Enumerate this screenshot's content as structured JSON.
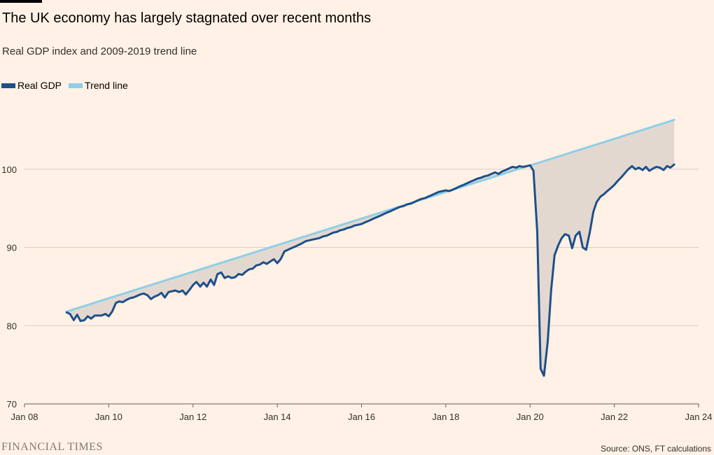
{
  "header": {
    "title": "The UK economy has largely stagnated over recent months",
    "subtitle": "Real GDP index and 2009-2019 trend line"
  },
  "footer": {
    "brand": "FINANCIAL TIMES",
    "source": "Source: ONS, FT calculations"
  },
  "chart_data": {
    "type": "line",
    "title": "The UK economy has largely stagnated over recent months",
    "subtitle": "Real GDP index and 2009-2019 trend line",
    "xlabel": "",
    "ylabel": "",
    "xlim": [
      2008.0,
      2024.0
    ],
    "ylim": [
      70,
      110
    ],
    "x_ticks": [
      {
        "value": 2008,
        "label": "Jan 08"
      },
      {
        "value": 2010,
        "label": "Jan 10"
      },
      {
        "value": 2012,
        "label": "Jan 12"
      },
      {
        "value": 2014,
        "label": "Jan 14"
      },
      {
        "value": 2016,
        "label": "Jan 16"
      },
      {
        "value": 2018,
        "label": "Jan 18"
      },
      {
        "value": 2020,
        "label": "Jan 20"
      },
      {
        "value": 2022,
        "label": "Jan 22"
      },
      {
        "value": 2024,
        "label": "Jan 24"
      }
    ],
    "y_ticks": [
      {
        "value": 70,
        "label": "70"
      },
      {
        "value": 80,
        "label": "80"
      },
      {
        "value": 90,
        "label": "90"
      },
      {
        "value": 100,
        "label": "100"
      }
    ],
    "grid": "horizontal",
    "legend_position": "top-left",
    "fill_between": "gap between series",
    "colors": {
      "background": "#fff1e5",
      "gdp": "#1e4f8a",
      "trend": "#8ecfe6",
      "fill": "#e3d8d0",
      "grid": "#d8cfc6"
    },
    "series": [
      {
        "name": "Real GDP",
        "color": "#1e4f8a",
        "points": [
          [
            2009.0,
            81.7
          ],
          [
            2009.08,
            81.5
          ],
          [
            2009.17,
            80.7
          ],
          [
            2009.25,
            81.4
          ],
          [
            2009.33,
            80.6
          ],
          [
            2009.42,
            80.7
          ],
          [
            2009.5,
            81.2
          ],
          [
            2009.58,
            80.9
          ],
          [
            2009.67,
            81.3
          ],
          [
            2009.75,
            81.3
          ],
          [
            2009.83,
            81.3
          ],
          [
            2009.92,
            81.5
          ],
          [
            2010.0,
            81.2
          ],
          [
            2010.08,
            81.8
          ],
          [
            2010.17,
            82.9
          ],
          [
            2010.25,
            83.1
          ],
          [
            2010.33,
            83.0
          ],
          [
            2010.42,
            83.3
          ],
          [
            2010.5,
            83.5
          ],
          [
            2010.58,
            83.6
          ],
          [
            2010.67,
            83.8
          ],
          [
            2010.75,
            84.0
          ],
          [
            2010.83,
            84.1
          ],
          [
            2010.92,
            83.9
          ],
          [
            2011.0,
            83.4
          ],
          [
            2011.08,
            83.7
          ],
          [
            2011.17,
            83.9
          ],
          [
            2011.25,
            84.2
          ],
          [
            2011.33,
            83.6
          ],
          [
            2011.42,
            84.3
          ],
          [
            2011.5,
            84.4
          ],
          [
            2011.58,
            84.5
          ],
          [
            2011.67,
            84.3
          ],
          [
            2011.75,
            84.5
          ],
          [
            2011.83,
            84.0
          ],
          [
            2011.92,
            84.6
          ],
          [
            2012.0,
            85.2
          ],
          [
            2012.08,
            85.6
          ],
          [
            2012.17,
            85.0
          ],
          [
            2012.25,
            85.5
          ],
          [
            2012.33,
            85.0
          ],
          [
            2012.42,
            85.9
          ],
          [
            2012.5,
            85.2
          ],
          [
            2012.58,
            86.6
          ],
          [
            2012.67,
            86.8
          ],
          [
            2012.75,
            86.1
          ],
          [
            2012.83,
            86.3
          ],
          [
            2012.92,
            86.1
          ],
          [
            2013.0,
            86.2
          ],
          [
            2013.08,
            86.6
          ],
          [
            2013.17,
            86.5
          ],
          [
            2013.25,
            86.9
          ],
          [
            2013.33,
            87.2
          ],
          [
            2013.42,
            87.3
          ],
          [
            2013.5,
            87.7
          ],
          [
            2013.58,
            87.8
          ],
          [
            2013.67,
            88.1
          ],
          [
            2013.75,
            87.9
          ],
          [
            2013.83,
            88.2
          ],
          [
            2013.92,
            88.5
          ],
          [
            2014.0,
            88.0
          ],
          [
            2014.08,
            88.5
          ],
          [
            2014.17,
            89.5
          ],
          [
            2014.25,
            89.7
          ],
          [
            2014.33,
            89.9
          ],
          [
            2014.42,
            90.1
          ],
          [
            2014.5,
            90.3
          ],
          [
            2014.58,
            90.5
          ],
          [
            2014.67,
            90.8
          ],
          [
            2014.75,
            90.9
          ],
          [
            2014.83,
            91.0
          ],
          [
            2014.92,
            91.1
          ],
          [
            2015.0,
            91.2
          ],
          [
            2015.08,
            91.4
          ],
          [
            2015.17,
            91.5
          ],
          [
            2015.25,
            91.7
          ],
          [
            2015.33,
            91.9
          ],
          [
            2015.42,
            92.0
          ],
          [
            2015.5,
            92.2
          ],
          [
            2015.58,
            92.3
          ],
          [
            2015.67,
            92.5
          ],
          [
            2015.75,
            92.6
          ],
          [
            2015.83,
            92.8
          ],
          [
            2015.92,
            92.9
          ],
          [
            2016.0,
            93.0
          ],
          [
            2016.08,
            93.2
          ],
          [
            2016.17,
            93.4
          ],
          [
            2016.25,
            93.6
          ],
          [
            2016.33,
            93.8
          ],
          [
            2016.42,
            94.0
          ],
          [
            2016.5,
            94.2
          ],
          [
            2016.58,
            94.4
          ],
          [
            2016.67,
            94.6
          ],
          [
            2016.75,
            94.8
          ],
          [
            2016.83,
            95.0
          ],
          [
            2016.92,
            95.2
          ],
          [
            2017.0,
            95.3
          ],
          [
            2017.08,
            95.5
          ],
          [
            2017.17,
            95.6
          ],
          [
            2017.25,
            95.8
          ],
          [
            2017.33,
            96.0
          ],
          [
            2017.42,
            96.2
          ],
          [
            2017.5,
            96.3
          ],
          [
            2017.58,
            96.5
          ],
          [
            2017.67,
            96.7
          ],
          [
            2017.75,
            96.9
          ],
          [
            2017.83,
            97.1
          ],
          [
            2017.92,
            97.2
          ],
          [
            2018.0,
            97.3
          ],
          [
            2018.08,
            97.2
          ],
          [
            2018.17,
            97.4
          ],
          [
            2018.25,
            97.6
          ],
          [
            2018.33,
            97.8
          ],
          [
            2018.42,
            98.0
          ],
          [
            2018.5,
            98.2
          ],
          [
            2018.58,
            98.4
          ],
          [
            2018.67,
            98.6
          ],
          [
            2018.75,
            98.8
          ],
          [
            2018.83,
            98.9
          ],
          [
            2018.92,
            99.1
          ],
          [
            2019.0,
            99.2
          ],
          [
            2019.08,
            99.4
          ],
          [
            2019.17,
            99.6
          ],
          [
            2019.25,
            99.4
          ],
          [
            2019.33,
            99.7
          ],
          [
            2019.42,
            99.9
          ],
          [
            2019.5,
            100.1
          ],
          [
            2019.58,
            100.3
          ],
          [
            2019.67,
            100.2
          ],
          [
            2019.75,
            100.4
          ],
          [
            2019.83,
            100.3
          ],
          [
            2019.92,
            100.4
          ],
          [
            2020.0,
            100.5
          ],
          [
            2020.08,
            99.8
          ],
          [
            2020.17,
            92.0
          ],
          [
            2020.25,
            74.5
          ],
          [
            2020.33,
            73.6
          ],
          [
            2020.42,
            78.0
          ],
          [
            2020.5,
            84.5
          ],
          [
            2020.58,
            89.0
          ],
          [
            2020.67,
            90.3
          ],
          [
            2020.75,
            91.2
          ],
          [
            2020.83,
            91.7
          ],
          [
            2020.92,
            91.5
          ],
          [
            2021.0,
            89.9
          ],
          [
            2021.08,
            91.5
          ],
          [
            2021.17,
            92.0
          ],
          [
            2021.25,
            90.0
          ],
          [
            2021.33,
            89.7
          ],
          [
            2021.42,
            92.0
          ],
          [
            2021.5,
            94.5
          ],
          [
            2021.58,
            95.8
          ],
          [
            2021.67,
            96.5
          ],
          [
            2021.75,
            96.8
          ],
          [
            2021.83,
            97.2
          ],
          [
            2021.92,
            97.6
          ],
          [
            2022.0,
            98.0
          ],
          [
            2022.08,
            98.5
          ],
          [
            2022.17,
            99.0
          ],
          [
            2022.25,
            99.5
          ],
          [
            2022.33,
            100.0
          ],
          [
            2022.42,
            100.4
          ],
          [
            2022.5,
            100.0
          ],
          [
            2022.58,
            100.2
          ],
          [
            2022.67,
            99.9
          ],
          [
            2022.75,
            100.3
          ],
          [
            2022.83,
            99.8
          ],
          [
            2022.92,
            100.1
          ],
          [
            2023.0,
            100.3
          ],
          [
            2023.08,
            100.2
          ],
          [
            2023.17,
            99.9
          ],
          [
            2023.25,
            100.4
          ],
          [
            2023.33,
            100.2
          ],
          [
            2023.42,
            100.6
          ]
        ]
      },
      {
        "name": "Trend line",
        "color": "#8ecfe6",
        "points": [
          [
            2009.0,
            81.8
          ],
          [
            2023.42,
            106.3
          ]
        ]
      }
    ]
  }
}
